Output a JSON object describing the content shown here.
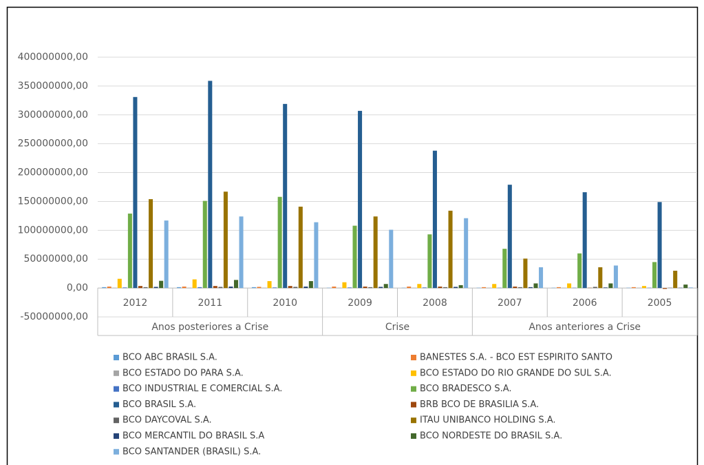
{
  "chart_data": {
    "type": "bar",
    "groups": [
      {
        "name": "Anos posteriores a Crise",
        "categories": [
          "2012",
          "2011",
          "2010"
        ]
      },
      {
        "name": "Crise",
        "categories": [
          "2009",
          "2008"
        ]
      },
      {
        "name": "Anos anteriores a Crise",
        "categories": [
          "2007",
          "2006",
          "2005"
        ]
      }
    ],
    "series": [
      {
        "name": "BCO ABC BRASIL S.A.",
        "color": "#5b9bd5",
        "values": [
          1500000,
          1500000,
          1500000,
          500000,
          500000,
          500000,
          500000,
          500000
        ]
      },
      {
        "name": "BANESTES S.A. - BCO EST ESPIRITO SANTO",
        "color": "#ed7d31",
        "values": [
          2500000,
          2500000,
          2000000,
          2500000,
          2500000,
          1500000,
          1500000,
          1500000
        ]
      },
      {
        "name": "BCO ESTADO DO PARA S.A.",
        "color": "#a5a5a5",
        "values": [
          500000,
          500000,
          500000,
          500000,
          500000,
          500000,
          500000,
          500000
        ]
      },
      {
        "name": "BCO ESTADO DO RIO GRANDE DO SUL S.A.",
        "color": "#ffc000",
        "values": [
          16000000,
          15000000,
          12000000,
          10000000,
          7000000,
          7000000,
          8000000,
          3500000
        ]
      },
      {
        "name": "BCO INDUSTRIAL E COMERCIAL S.A.",
        "color": "#4472c4",
        "values": [
          1000000,
          1500000,
          1000000,
          1000000,
          1000000,
          500000,
          500000,
          500000
        ]
      },
      {
        "name": "BCO BRADESCO S.A.",
        "color": "#70ad47",
        "values": [
          129000000,
          151000000,
          158000000,
          108000000,
          93000000,
          68000000,
          60000000,
          45000000
        ]
      },
      {
        "name": "BCO BRASIL S.A.",
        "color": "#255e91",
        "values": [
          331000000,
          359000000,
          319000000,
          307000000,
          238000000,
          179000000,
          166000000,
          149000000
        ]
      },
      {
        "name": "BRB BCO DE BRASILIA S.A.",
        "color": "#9e480e",
        "values": [
          3500000,
          3500000,
          3500000,
          2500000,
          2500000,
          2500000,
          500000,
          -1500000
        ]
      },
      {
        "name": "BCO DAYCOVAL S.A.",
        "color": "#636363",
        "values": [
          1500000,
          2000000,
          2000000,
          1500000,
          1500000,
          1500000,
          2000000,
          500000
        ]
      },
      {
        "name": "ITAU UNIBANCO HOLDING S.A.",
        "color": "#997300",
        "values": [
          154000000,
          167000000,
          141000000,
          124000000,
          134000000,
          51000000,
          36000000,
          30000000
        ]
      },
      {
        "name": "BCO MERCANTIL DO BRASIL S.A",
        "color": "#264478",
        "values": [
          2000000,
          2500000,
          2500000,
          2000000,
          2000000,
          1500000,
          1000000,
          500000
        ]
      },
      {
        "name": "BCO NORDESTE DO BRASIL S.A.",
        "color": "#43682b",
        "values": [
          12500000,
          14000000,
          12000000,
          7000000,
          5000000,
          8000000,
          8000000,
          6000000
        ]
      },
      {
        "name": "BCO SANTANDER (BRASIL) S.A.",
        "color": "#7cafdd",
        "values": [
          117000000,
          124000000,
          114000000,
          101000000,
          121000000,
          36000000,
          39000000,
          1000000
        ]
      }
    ],
    "ylim": [
      -50000000,
      400000000
    ],
    "yticks": [
      {
        "value": -50000000,
        "label": "-50000000,00"
      },
      {
        "value": 0,
        "label": "0,00"
      },
      {
        "value": 50000000,
        "label": "50000000,00"
      },
      {
        "value": 100000000,
        "label": "100000000,00"
      },
      {
        "value": 150000000,
        "label": "150000000,00"
      },
      {
        "value": 200000000,
        "label": "200000000,00"
      },
      {
        "value": 250000000,
        "label": "250000000,00"
      },
      {
        "value": 300000000,
        "label": "300000000,00"
      },
      {
        "value": 350000000,
        "label": "350000000,00"
      },
      {
        "value": 400000000,
        "label": "400000000,00"
      }
    ],
    "grid": true
  }
}
